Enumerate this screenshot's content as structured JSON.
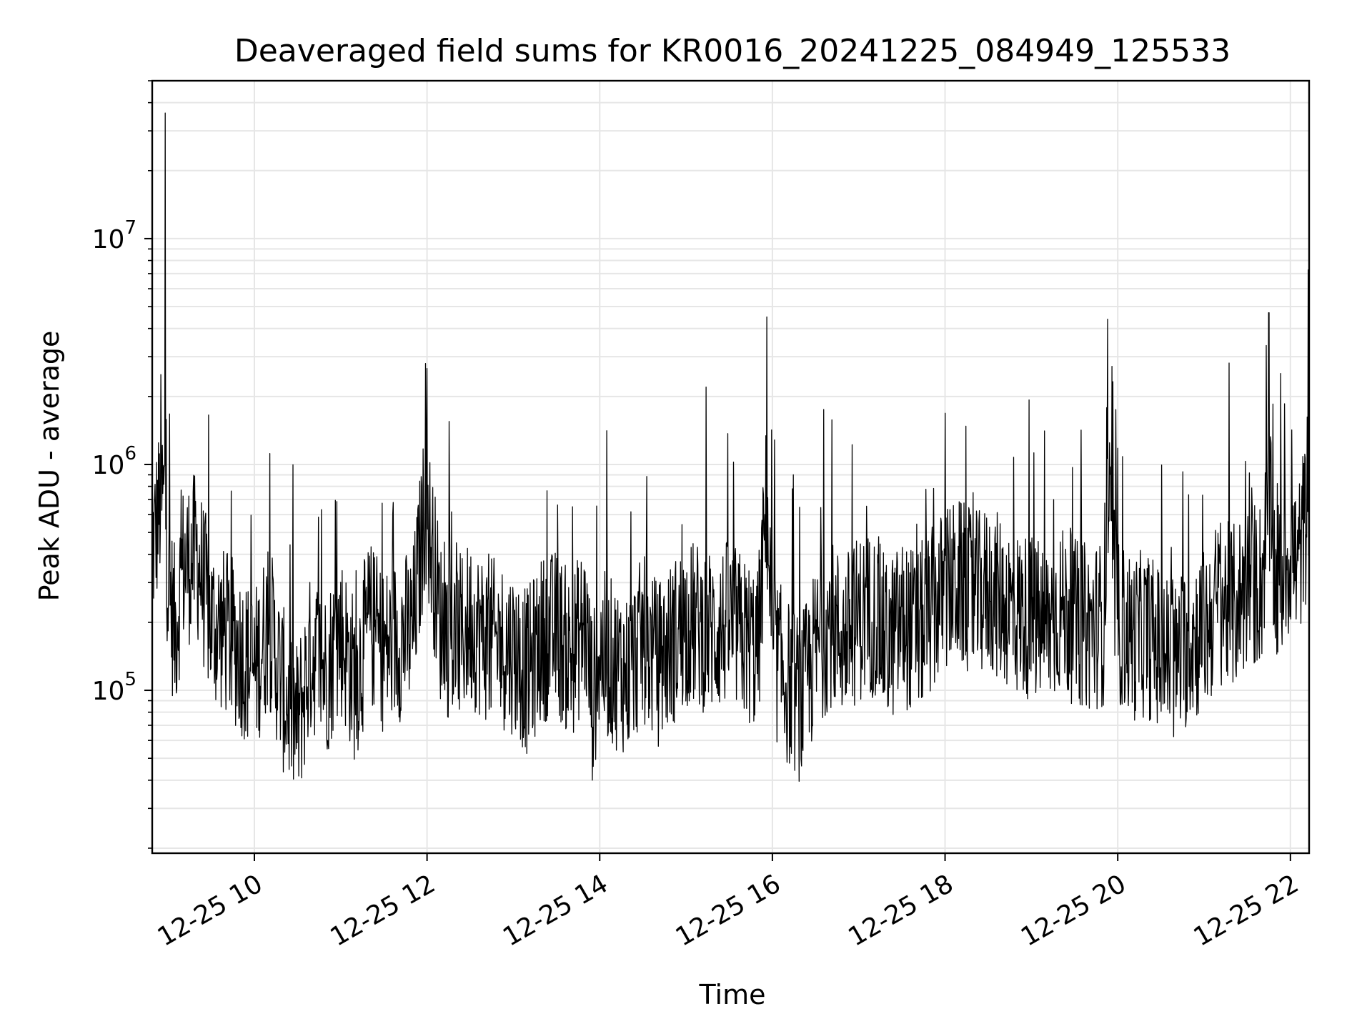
{
  "chart_data": {
    "type": "line",
    "title": "Deaveraged field sums for KR0016_20241225_084949_125533",
    "xlabel": "Time",
    "ylabel": "Peak ADU - average",
    "yscale": "log",
    "grid": true,
    "line_color": "#000000",
    "grid_color": "#e6e6e6",
    "xlim": [
      "2024-12-25 08:49",
      "2024-12-25 22:13"
    ],
    "ylim": [
      19000,
      50000000
    ],
    "x_ticks": [
      {
        "value": "2024-12-25 10:00",
        "label": "12-25 10"
      },
      {
        "value": "2024-12-25 12:00",
        "label": "12-25 12"
      },
      {
        "value": "2024-12-25 14:00",
        "label": "12-25 14"
      },
      {
        "value": "2024-12-25 16:00",
        "label": "12-25 16"
      },
      {
        "value": "2024-12-25 18:00",
        "label": "12-25 18"
      },
      {
        "value": "2024-12-25 20:00",
        "label": "12-25 20"
      },
      {
        "value": "2024-12-25 22:00",
        "label": "12-25 22"
      }
    ],
    "y_ticks": [
      {
        "value": 100000,
        "base": "10",
        "exp": "5"
      },
      {
        "value": 1000000,
        "base": "10",
        "exp": "6"
      },
      {
        "value": 10000000,
        "base": "10",
        "exp": "7"
      }
    ],
    "series": [
      {
        "x": [
          "2024-12-25 08:50",
          "2024-12-25 08:55",
          "2024-12-25 08:58",
          "2024-12-25 09:00",
          "2024-12-25 09:05",
          "2024-12-25 09:10",
          "2024-12-25 09:20",
          "2024-12-25 09:30",
          "2024-12-25 09:40",
          "2024-12-25 09:50",
          "2024-12-25 10:00",
          "2024-12-25 10:10",
          "2024-12-25 10:20",
          "2024-12-25 10:30",
          "2024-12-25 10:40",
          "2024-12-25 10:50",
          "2024-12-25 11:00",
          "2024-12-25 11:10",
          "2024-12-25 11:20",
          "2024-12-25 11:30",
          "2024-12-25 11:40",
          "2024-12-25 11:50",
          "2024-12-25 11:59",
          "2024-12-25 12:10",
          "2024-12-25 12:20",
          "2024-12-25 12:30",
          "2024-12-25 12:40",
          "2024-12-25 12:50",
          "2024-12-25 13:00",
          "2024-12-25 13:10",
          "2024-12-25 13:20",
          "2024-12-25 13:30",
          "2024-12-25 13:40",
          "2024-12-25 13:50",
          "2024-12-25 13:55",
          "2024-12-25 14:00",
          "2024-12-25 14:10",
          "2024-12-25 14:20",
          "2024-12-25 14:30",
          "2024-12-25 14:40",
          "2024-12-25 14:50",
          "2024-12-25 15:00",
          "2024-12-25 15:10",
          "2024-12-25 15:20",
          "2024-12-25 15:30",
          "2024-12-25 15:40",
          "2024-12-25 15:50",
          "2024-12-25 15:56",
          "2024-12-25 16:00",
          "2024-12-25 16:10",
          "2024-12-25 16:20",
          "2024-12-25 16:30",
          "2024-12-25 16:40",
          "2024-12-25 16:50",
          "2024-12-25 17:00",
          "2024-12-25 17:10",
          "2024-12-25 17:20",
          "2024-12-25 17:30",
          "2024-12-25 17:40",
          "2024-12-25 17:50",
          "2024-12-25 18:00",
          "2024-12-25 18:10",
          "2024-12-25 18:20",
          "2024-12-25 18:30",
          "2024-12-25 18:40",
          "2024-12-25 18:50",
          "2024-12-25 19:00",
          "2024-12-25 19:10",
          "2024-12-25 19:20",
          "2024-12-25 19:30",
          "2024-12-25 19:40",
          "2024-12-25 19:50",
          "2024-12-25 19:53",
          "2024-12-25 20:00",
          "2024-12-25 20:10",
          "2024-12-25 20:20",
          "2024-12-25 20:30",
          "2024-12-25 20:40",
          "2024-12-25 20:50",
          "2024-12-25 21:00",
          "2024-12-25 21:10",
          "2024-12-25 21:20",
          "2024-12-25 21:30",
          "2024-12-25 21:40",
          "2024-12-25 21:45",
          "2024-12-25 21:50",
          "2024-12-25 22:00",
          "2024-12-25 22:05",
          "2024-12-25 22:10",
          "2024-12-25 22:13"
        ],
        "y": [
          450000,
          2500000,
          36000000,
          300000,
          180000,
          350000,
          400000,
          200000,
          180000,
          150000,
          120000,
          200000,
          100000,
          70000,
          150000,
          120000,
          180000,
          110000,
          200000,
          150000,
          170000,
          180000,
          2800000,
          190000,
          160000,
          200000,
          170000,
          160000,
          150000,
          120000,
          170000,
          180000,
          140000,
          200000,
          90000,
          150000,
          130000,
          120000,
          170000,
          130000,
          160000,
          200000,
          190000,
          180000,
          200000,
          170000,
          150000,
          4500000,
          150000,
          110000,
          90000,
          150000,
          200000,
          170000,
          210000,
          220000,
          160000,
          200000,
          180000,
          220000,
          280000,
          300000,
          260000,
          280000,
          250000,
          220000,
          210000,
          190000,
          230000,
          200000,
          190000,
          200000,
          4400000,
          200000,
          170000,
          180000,
          150000,
          130000,
          170000,
          180000,
          250000,
          230000,
          290000,
          300000,
          4700000,
          280000,
          420000,
          350000,
          550000,
          600000
        ]
      }
    ]
  }
}
